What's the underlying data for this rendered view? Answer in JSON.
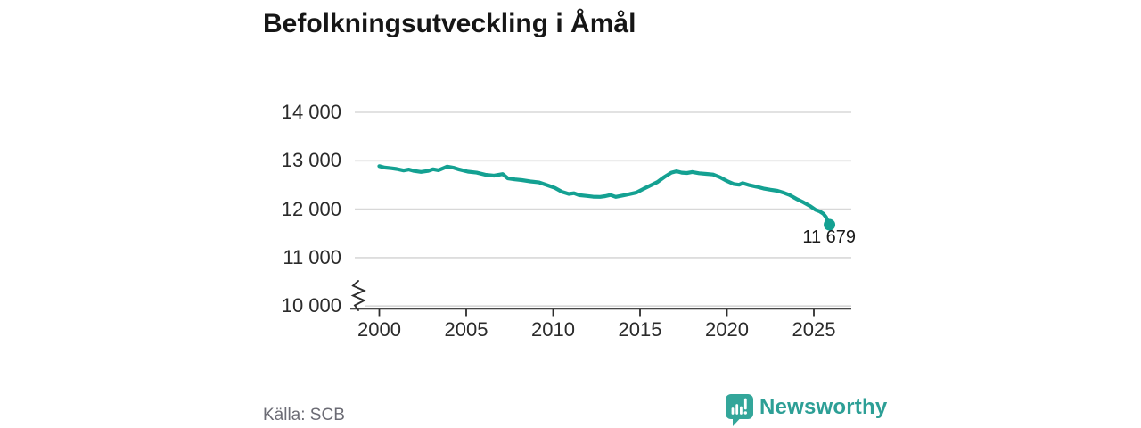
{
  "title": "Befolkningsutveckling i Åmål",
  "chart_data": {
    "type": "line",
    "title": "Befolkningsutveckling i Åmål",
    "xlabel": "",
    "ylabel": "",
    "xlim": [
      1998.6,
      2027.15
    ],
    "ylim": [
      10000,
      14000
    ],
    "axis_break_at_bottom": true,
    "grid": "horizontal",
    "legend": "none",
    "x_ticks": [
      2000,
      2005,
      2010,
      2015,
      2020,
      2025
    ],
    "x_tick_labels": [
      "2000",
      "2005",
      "2010",
      "2015",
      "2020",
      "2025"
    ],
    "y_ticks": [
      14000,
      13000,
      12000,
      11000,
      10000
    ],
    "y_tick_labels": [
      "14 000",
      "13 000",
      "12 000",
      "11 000",
      "10 000"
    ],
    "line_color": "#14a192",
    "series": [
      {
        "name": "Befolkning i Åmål",
        "points": [
          [
            2000.0,
            12890
          ],
          [
            2000.3,
            12860
          ],
          [
            2000.7,
            12845
          ],
          [
            2001.0,
            12830
          ],
          [
            2001.4,
            12800
          ],
          [
            2001.7,
            12820
          ],
          [
            2002.0,
            12790
          ],
          [
            2002.4,
            12770
          ],
          [
            2002.8,
            12790
          ],
          [
            2003.1,
            12825
          ],
          [
            2003.4,
            12805
          ],
          [
            2003.9,
            12880
          ],
          [
            2004.3,
            12855
          ],
          [
            2004.6,
            12820
          ],
          [
            2005.1,
            12775
          ],
          [
            2005.6,
            12755
          ],
          [
            2006.1,
            12712
          ],
          [
            2006.6,
            12692
          ],
          [
            2007.1,
            12725
          ],
          [
            2007.4,
            12635
          ],
          [
            2007.8,
            12615
          ],
          [
            2008.2,
            12600
          ],
          [
            2008.7,
            12572
          ],
          [
            2009.2,
            12552
          ],
          [
            2009.7,
            12490
          ],
          [
            2010.1,
            12440
          ],
          [
            2010.5,
            12360
          ],
          [
            2010.9,
            12315
          ],
          [
            2011.2,
            12330
          ],
          [
            2011.5,
            12290
          ],
          [
            2011.9,
            12275
          ],
          [
            2012.3,
            12258
          ],
          [
            2012.7,
            12255
          ],
          [
            2013.0,
            12268
          ],
          [
            2013.3,
            12292
          ],
          [
            2013.6,
            12255
          ],
          [
            2014.0,
            12282
          ],
          [
            2014.4,
            12312
          ],
          [
            2014.8,
            12345
          ],
          [
            2015.2,
            12420
          ],
          [
            2015.6,
            12490
          ],
          [
            2016.0,
            12560
          ],
          [
            2016.4,
            12665
          ],
          [
            2016.8,
            12755
          ],
          [
            2017.1,
            12782
          ],
          [
            2017.4,
            12755
          ],
          [
            2017.7,
            12748
          ],
          [
            2018.0,
            12768
          ],
          [
            2018.4,
            12742
          ],
          [
            2018.8,
            12730
          ],
          [
            2019.2,
            12716
          ],
          [
            2019.6,
            12660
          ],
          [
            2020.0,
            12582
          ],
          [
            2020.4,
            12520
          ],
          [
            2020.7,
            12505
          ],
          [
            2020.9,
            12538
          ],
          [
            2021.3,
            12495
          ],
          [
            2021.7,
            12465
          ],
          [
            2022.1,
            12428
          ],
          [
            2022.5,
            12402
          ],
          [
            2022.9,
            12380
          ],
          [
            2023.3,
            12336
          ],
          [
            2023.6,
            12292
          ],
          [
            2024.0,
            12212
          ],
          [
            2024.4,
            12142
          ],
          [
            2024.8,
            12060
          ],
          [
            2025.1,
            11988
          ],
          [
            2025.35,
            11952
          ],
          [
            2025.55,
            11905
          ],
          [
            2025.7,
            11835
          ],
          [
            2025.9,
            11679
          ]
        ]
      }
    ],
    "end_point": {
      "x": 2025.9,
      "y": 11679,
      "label": "11 679"
    }
  },
  "footer": {
    "source": "Källa: SCB",
    "brand": "Newsworthy",
    "brand_color": "#2d9f96"
  },
  "colors": {
    "line": "#14a192",
    "grid": "#d8d8d8",
    "axis": "#2e2e2e",
    "title": "#161616",
    "source_text": "#6b6b74"
  }
}
